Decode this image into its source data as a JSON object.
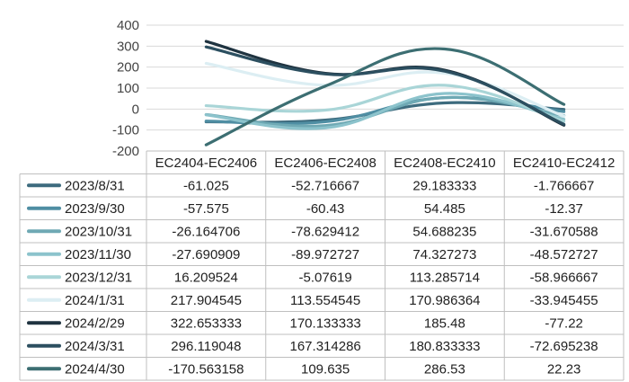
{
  "chart_data": {
    "type": "line",
    "categories": [
      "EC2404-EC2406",
      "EC2406-EC2408",
      "EC2408-EC2410",
      "EC2410-EC2412"
    ],
    "ylim": [
      -200,
      400
    ],
    "yticks": [
      "400",
      "300",
      "200",
      "100",
      "0",
      "-100",
      "-200"
    ],
    "grid": true,
    "legend_placement": "data-table-left",
    "series": [
      {
        "name": "2023/8/31",
        "color": "#3d6b7e",
        "values": [
          -61.025,
          -52.716667,
          29.183333,
          -1.766667
        ],
        "labels": [
          "-61.025",
          "-52.716667",
          "29.183333",
          "-1.766667"
        ]
      },
      {
        "name": "2023/9/30",
        "color": "#4f8ea3",
        "values": [
          -57.575,
          -60.43,
          54.485,
          -12.37
        ],
        "labels": [
          "-57.575",
          "-60.43",
          "54.485",
          "-12.37"
        ]
      },
      {
        "name": "2023/10/31",
        "color": "#6fa9b4",
        "values": [
          -26.164706,
          -78.629412,
          54.688235,
          -31.670588
        ],
        "labels": [
          "-26.164706",
          "-78.629412",
          "54.688235",
          "-31.670588"
        ]
      },
      {
        "name": "2023/11/30",
        "color": "#8cc3cc",
        "values": [
          -27.690909,
          -89.972727,
          74.327273,
          -48.572727
        ],
        "labels": [
          "-27.690909",
          "-89.972727",
          "74.327273",
          "-48.572727"
        ]
      },
      {
        "name": "2023/12/31",
        "color": "#a9d5d7",
        "values": [
          16.209524,
          -5.07619,
          113.285714,
          -58.966667
        ],
        "labels": [
          "16.209524",
          "-5.07619",
          "113.285714",
          "-58.966667"
        ]
      },
      {
        "name": "2024/1/31",
        "color": "#dceef3",
        "values": [
          217.904545,
          113.554545,
          170.986364,
          -33.945455
        ],
        "labels": [
          "217.904545",
          "113.554545",
          "170.986364",
          "-33.945455"
        ]
      },
      {
        "name": "2024/2/29",
        "color": "#1f3340",
        "values": [
          322.653333,
          170.133333,
          185.48,
          -77.22
        ],
        "labels": [
          "322.653333",
          "170.133333",
          "185.48",
          "-77.22"
        ]
      },
      {
        "name": "2024/3/31",
        "color": "#2c4f60",
        "values": [
          296.119048,
          167.314286,
          180.833333,
          -72.695238
        ],
        "labels": [
          "296.119048",
          "167.314286",
          "180.833333",
          "-72.695238"
        ]
      },
      {
        "name": "2024/4/30",
        "color": "#3c6e72",
        "values": [
          -170.563158,
          109.635,
          286.53,
          22.23
        ],
        "labels": [
          "-170.563158",
          "109.635",
          "286.53",
          "22.23"
        ]
      }
    ]
  }
}
